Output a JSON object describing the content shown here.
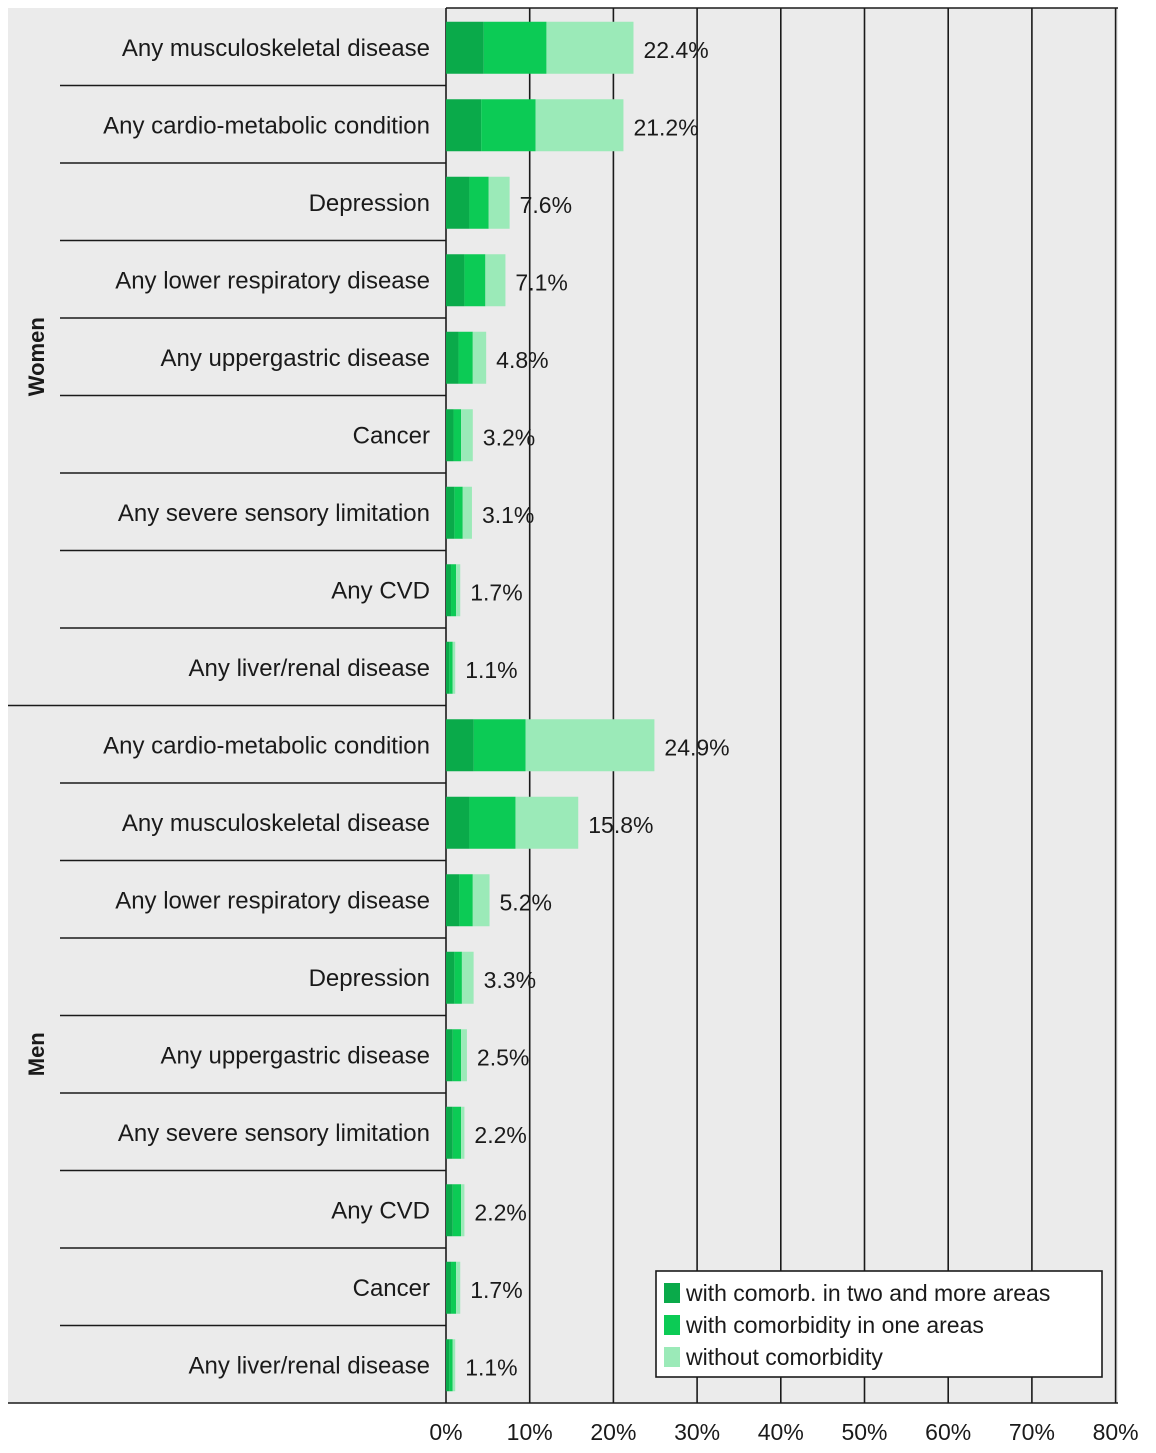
{
  "chart_data": {
    "type": "bar",
    "orientation": "horizontal",
    "stacked": true,
    "xlim": [
      0,
      80
    ],
    "x_ticks": [
      "0%",
      "10%",
      "20%",
      "30%",
      "40%",
      "50%",
      "60%",
      "70%",
      "80%"
    ],
    "grid": true,
    "legend_position": "bottom-right",
    "legend": [
      {
        "label": "with comorb. in two and more areas",
        "color": "#0aaa4a"
      },
      {
        "label": "with comorbidity in one areas",
        "color": "#0ccb55"
      },
      {
        "label": "without comorbidity",
        "color": "#9beab8"
      }
    ],
    "groups": [
      {
        "name": "Women",
        "rows": [
          {
            "label": "Any musculoskeletal disease",
            "values": [
              4.5,
              7.5,
              10.4
            ],
            "total_label": "22.4%"
          },
          {
            "label": "Any cardio-metabolic condition",
            "values": [
              4.2,
              6.5,
              10.5
            ],
            "total_label": "21.2%"
          },
          {
            "label": "Depression",
            "values": [
              2.8,
              2.3,
              2.5
            ],
            "total_label": "7.6%"
          },
          {
            "label": "Any lower respiratory disease",
            "values": [
              2.2,
              2.5,
              2.4
            ],
            "total_label": "7.1%"
          },
          {
            "label": "Any uppergastric disease",
            "values": [
              1.5,
              1.7,
              1.6
            ],
            "total_label": "4.8%"
          },
          {
            "label": "Cancer",
            "values": [
              0.9,
              0.9,
              1.4
            ],
            "total_label": "3.2%"
          },
          {
            "label": "Any severe sensory limitation",
            "values": [
              1.0,
              1.0,
              1.1
            ],
            "total_label": "3.1%"
          },
          {
            "label": "Any CVD",
            "values": [
              0.6,
              0.6,
              0.5
            ],
            "total_label": "1.7%"
          },
          {
            "label": "Any liver/renal disease",
            "values": [
              0.4,
              0.4,
              0.3
            ],
            "total_label": "1.1%"
          }
        ]
      },
      {
        "name": "Men",
        "rows": [
          {
            "label": "Any cardio-metabolic condition",
            "values": [
              3.3,
              6.2,
              15.4
            ],
            "total_label": "24.9%"
          },
          {
            "label": "Any musculoskeletal disease",
            "values": [
              2.8,
              5.5,
              7.5
            ],
            "total_label": "15.8%"
          },
          {
            "label": "Any lower respiratory disease",
            "values": [
              1.6,
              1.6,
              2.0
            ],
            "total_label": "5.2%"
          },
          {
            "label": "Depression",
            "values": [
              1.0,
              0.9,
              1.4
            ],
            "total_label": "3.3%"
          },
          {
            "label": "Any uppergastric disease",
            "values": [
              0.8,
              1.0,
              0.7
            ],
            "total_label": "2.5%"
          },
          {
            "label": "Any severe sensory limitation",
            "values": [
              0.8,
              1.0,
              0.4
            ],
            "total_label": "2.2%"
          },
          {
            "label": "Any CVD",
            "values": [
              0.8,
              1.0,
              0.4
            ],
            "total_label": "2.2%"
          },
          {
            "label": "Cancer",
            "values": [
              0.6,
              0.6,
              0.5
            ],
            "total_label": "1.7%"
          },
          {
            "label": "Any liver/renal disease",
            "values": [
              0.4,
              0.4,
              0.3
            ],
            "total_label": "1.1%"
          }
        ]
      }
    ]
  }
}
